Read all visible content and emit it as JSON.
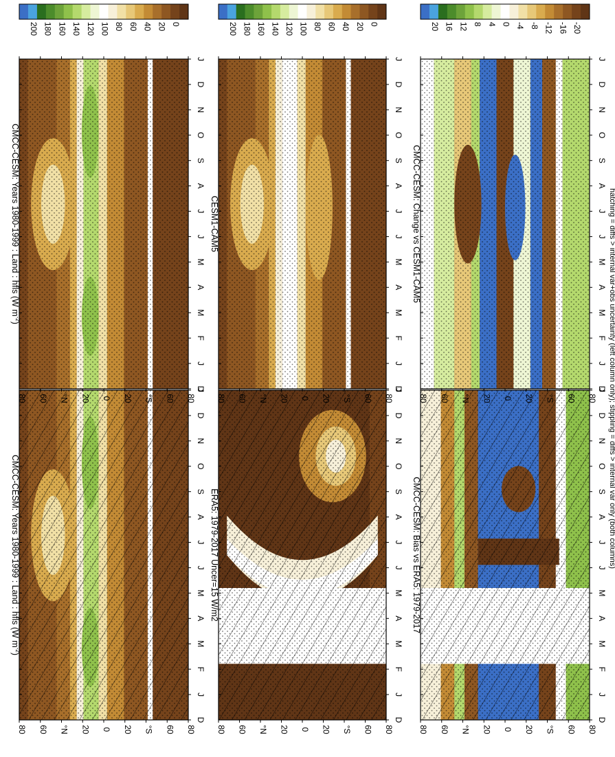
{
  "figure": {
    "footnote": "hatching = diffs > internal var+obs uncertainty (left column only); stippling = diffs > internal var only (both columns)"
  },
  "palettes": {
    "absolute": [
      "#3b6fc6",
      "#4aa3df",
      "#2a6e1e",
      "#4c8c2b",
      "#6da33a",
      "#8fc14b",
      "#b4d96d",
      "#d6ec9f",
      "#eef6d4",
      "#ffffff",
      "#f7f0d9",
      "#f1e0a6",
      "#e7c878",
      "#d9ab4e",
      "#c38b35",
      "#a86f2b",
      "#8e5722",
      "#75431b",
      "#603516"
    ],
    "difference": [
      "#3b6fc6",
      "#4aa3df",
      "#2a6e1e",
      "#4c8c2b",
      "#6da33a",
      "#8fc14b",
      "#b4d96d",
      "#d6ec9f",
      "#eef6d4",
      "#ffffff",
      "#f7f0d9",
      "#f1e0a6",
      "#e7c878",
      "#d9ab4e",
      "#c38b35",
      "#a86f2b",
      "#8e5722",
      "#75431b",
      "#603516"
    ]
  },
  "months": [
    "D",
    "J",
    "F",
    "M",
    "A",
    "M",
    "J",
    "J",
    "A",
    "S",
    "O",
    "N",
    "D",
    "J"
  ],
  "lat_ticks": [
    "80",
    "60",
    "°N",
    "20",
    "0",
    "20",
    "°S",
    "60",
    "80"
  ],
  "colorbars": {
    "absolute_ticks": [
      "200",
      "180",
      "160",
      "140",
      "120",
      "100",
      "80",
      "60",
      "40",
      "20",
      "0"
    ],
    "difference_ticks": [
      "20",
      "16",
      "12",
      "8",
      "4",
      "0",
      "-4",
      "-8",
      "-12",
      "-16",
      "-20"
    ]
  },
  "panels": [
    {
      "id": "p1",
      "title": "CMCC-CESM: Years 1980-1999 : Land : hfls (W m",
      "title_sup": "-2",
      "title_end": ")",
      "scale": "absolute",
      "kind": "model",
      "hatch": true,
      "stipple": true
    },
    {
      "id": "p2",
      "title": "CMCC-CESM: Years 1980-1999 : Land : hfls (W m",
      "title_sup": "-2",
      "title_end": ")",
      "scale": "absolute",
      "kind": "model",
      "hatch": false,
      "stipple": true
    },
    {
      "id": "p3",
      "title": "ERA5: 1979-2017 Uncer=15 W/m2",
      "title_sup": "",
      "title_end": "",
      "scale": "absolute",
      "kind": "era5",
      "hatch": true,
      "stipple": true
    },
    {
      "id": "p4",
      "title": "CESM1-CAM5",
      "title_sup": "",
      "title_end": "",
      "scale": "absolute",
      "kind": "model2",
      "hatch": false,
      "stipple": true
    },
    {
      "id": "p5",
      "title": "CMCC-CESM: Bias vs ERA5: 1979-2017",
      "title_sup": "",
      "title_end": "",
      "scale": "difference",
      "kind": "bias",
      "hatch": true,
      "stipple": true
    },
    {
      "id": "p6",
      "title": "CMCC-CESM: Change vs CESM1-CAM5",
      "title_sup": "",
      "title_end": "",
      "scale": "difference",
      "kind": "change",
      "hatch": false,
      "stipple": true
    }
  ],
  "chart_data": [
    {
      "type": "heatmap",
      "title": "CMCC-CESM: Years 1980-1999 : Land : hfls (W m-2)",
      "x": [
        "D",
        "J",
        "F",
        "M",
        "A",
        "M",
        "J",
        "J",
        "A",
        "S",
        "O",
        "N",
        "D",
        "J"
      ],
      "y": [
        "80",
        "60",
        "°N",
        "20",
        "0",
        "20",
        "°S",
        "60",
        "80"
      ],
      "colorbar": [
        "200",
        "180",
        "160",
        "140",
        "120",
        "100",
        "80",
        "60",
        "40",
        "20",
        "0"
      ]
    },
    {
      "type": "heatmap",
      "title": "CMCC-CESM: Years 1980-1999 : Land : hfls (W m-2)",
      "x": [
        "D",
        "J",
        "F",
        "M",
        "A",
        "M",
        "J",
        "J",
        "A",
        "S",
        "O",
        "N",
        "D",
        "J"
      ],
      "y": [
        "80",
        "60",
        "°N",
        "20",
        "0",
        "20",
        "°S",
        "60",
        "80"
      ],
      "colorbar": [
        "200",
        "180",
        "160",
        "140",
        "120",
        "100",
        "80",
        "60",
        "40",
        "20",
        "0"
      ]
    },
    {
      "type": "heatmap",
      "title": "ERA5: 1979-2017 Uncer=15 W/m2",
      "x": [
        "D",
        "J",
        "F",
        "M",
        "A",
        "M",
        "J",
        "J",
        "A",
        "S",
        "O",
        "N",
        "D",
        "J"
      ],
      "y": [
        "80",
        "60",
        "°N",
        "20",
        "0",
        "20",
        "°S",
        "60",
        "80"
      ],
      "colorbar": [
        "200",
        "180",
        "160",
        "140",
        "120",
        "100",
        "80",
        "60",
        "40",
        "20",
        "0"
      ]
    },
    {
      "type": "heatmap",
      "title": "CESM1-CAM5",
      "x": [
        "D",
        "J",
        "F",
        "M",
        "A",
        "M",
        "J",
        "J",
        "A",
        "S",
        "O",
        "N",
        "D",
        "J"
      ],
      "y": [
        "80",
        "60",
        "°N",
        "20",
        "0",
        "20",
        "°S",
        "60",
        "80"
      ],
      "colorbar": [
        "200",
        "180",
        "160",
        "140",
        "120",
        "100",
        "80",
        "60",
        "40",
        "20",
        "0"
      ]
    },
    {
      "type": "heatmap",
      "title": "CMCC-CESM: Bias vs ERA5: 1979-2017",
      "x": [
        "D",
        "J",
        "F",
        "M",
        "A",
        "M",
        "J",
        "J",
        "A",
        "S",
        "O",
        "N",
        "D",
        "J"
      ],
      "y": [
        "80",
        "60",
        "°N",
        "20",
        "0",
        "20",
        "°S",
        "60",
        "80"
      ],
      "colorbar": [
        "20",
        "16",
        "12",
        "8",
        "4",
        "0",
        "-4",
        "-8",
        "-12",
        "-16",
        "-20"
      ]
    },
    {
      "type": "heatmap",
      "title": "CMCC-CESM: Change vs CESM1-CAM5",
      "x": [
        "D",
        "J",
        "F",
        "M",
        "A",
        "M",
        "J",
        "J",
        "A",
        "S",
        "O",
        "N",
        "D",
        "J"
      ],
      "y": [
        "80",
        "60",
        "°N",
        "20",
        "0",
        "20",
        "°S",
        "60",
        "80"
      ],
      "colorbar": [
        "20",
        "16",
        "12",
        "8",
        "4",
        "0",
        "-4",
        "-8",
        "-12",
        "-16",
        "-20"
      ]
    }
  ]
}
